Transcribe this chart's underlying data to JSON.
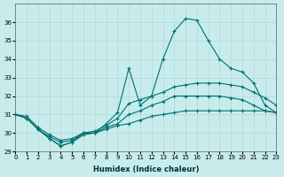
{
  "xlabel": "Humidex (Indice chaleur)",
  "ylabel": "",
  "bg_color": "#c8ecec",
  "grid_color": "#b0d8d8",
  "line_color": "#007070",
  "xlim": [
    0,
    23
  ],
  "ylim": [
    29,
    37
  ],
  "yticks": [
    29,
    30,
    31,
    32,
    33,
    34,
    35,
    36
  ],
  "xticks": [
    0,
    1,
    2,
    3,
    4,
    5,
    6,
    7,
    8,
    9,
    10,
    11,
    12,
    13,
    14,
    15,
    16,
    17,
    18,
    19,
    20,
    21,
    22,
    23
  ],
  "series": [
    {
      "x": [
        0,
        1,
        2,
        3,
        4,
        5,
        6,
        7,
        8,
        9,
        10,
        11,
        12,
        13,
        14,
        15,
        16,
        17,
        18,
        19,
        20,
        21,
        22,
        23
      ],
      "y": [
        31.0,
        30.8,
        30.2,
        29.7,
        29.3,
        29.5,
        30.0,
        30.0,
        30.5,
        31.1,
        33.5,
        31.5,
        32.0,
        34.0,
        35.5,
        36.2,
        36.1,
        35.0,
        34.0,
        33.5,
        33.3,
        32.7,
        31.5,
        31.1
      ]
    },
    {
      "x": [
        0,
        1,
        2,
        3,
        4,
        5,
        6,
        7,
        8,
        9,
        10,
        11,
        12,
        13,
        14,
        15,
        16,
        17,
        18,
        19,
        20,
        21,
        22,
        23
      ],
      "y": [
        31.0,
        30.8,
        30.2,
        29.8,
        29.5,
        29.6,
        30.0,
        30.1,
        30.4,
        30.8,
        31.6,
        31.8,
        32.0,
        32.2,
        32.5,
        32.6,
        32.7,
        32.7,
        32.7,
        32.6,
        32.5,
        32.2,
        31.9,
        31.5
      ]
    },
    {
      "x": [
        0,
        1,
        2,
        3,
        4,
        5,
        6,
        7,
        8,
        9,
        10,
        11,
        12,
        13,
        14,
        15,
        16,
        17,
        18,
        19,
        20,
        21,
        22,
        23
      ],
      "y": [
        31.0,
        30.9,
        30.3,
        29.9,
        29.6,
        29.7,
        30.0,
        30.0,
        30.3,
        30.5,
        31.0,
        31.2,
        31.5,
        31.7,
        32.0,
        32.0,
        32.0,
        32.0,
        32.0,
        31.9,
        31.8,
        31.5,
        31.2,
        31.1
      ]
    },
    {
      "x": [
        0,
        1,
        2,
        3,
        4,
        5,
        6,
        7,
        8,
        9,
        10,
        11,
        12,
        13,
        14,
        15,
        16,
        17,
        18,
        19,
        20,
        21,
        22,
        23
      ],
      "y": [
        31.0,
        30.8,
        30.2,
        29.7,
        29.3,
        29.5,
        29.9,
        30.0,
        30.2,
        30.4,
        30.5,
        30.7,
        30.9,
        31.0,
        31.1,
        31.2,
        31.2,
        31.2,
        31.2,
        31.2,
        31.2,
        31.2,
        31.2,
        31.1
      ]
    }
  ]
}
